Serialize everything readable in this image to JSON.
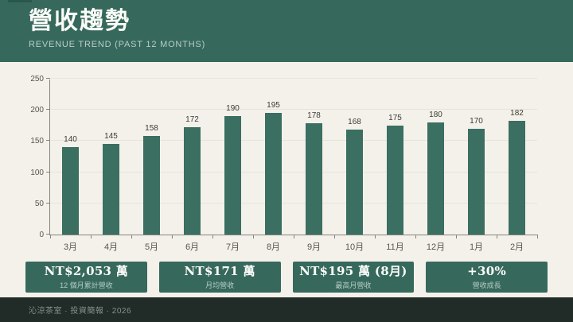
{
  "header": {
    "title": "營收趨勢",
    "subtitle": "REVENUE TREND (PAST 12 MONTHS)"
  },
  "chart_data": {
    "type": "bar",
    "categories": [
      "3月",
      "4月",
      "5月",
      "6月",
      "7月",
      "8月",
      "9月",
      "10月",
      "11月",
      "12月",
      "1月",
      "2月"
    ],
    "values": [
      140,
      145,
      158,
      172,
      190,
      195,
      178,
      168,
      175,
      180,
      170,
      182
    ],
    "title": "",
    "xlabel": "",
    "ylabel": "",
    "ylim": [
      0,
      250
    ],
    "yticks": [
      0,
      50,
      100,
      150,
      200,
      250
    ],
    "grid": true,
    "value_labels": true,
    "legend": false
  },
  "stats": [
    {
      "value": "NT$2,053 萬",
      "label": "12 個月累計營收"
    },
    {
      "value": "NT$171 萬",
      "label": "月均營收"
    },
    {
      "value": "NT$195 萬 (8月)",
      "label": "最高月營收"
    },
    {
      "value": "+30%",
      "label": "營收成長"
    }
  ],
  "footer": {
    "text": "沁涼茶室 · 投資簡報 · 2026"
  },
  "colors": {
    "header_bg": "#36695C",
    "body_bg": "#F4F1EA",
    "accent_tab": "#2B564A",
    "bar": "#3A6F61",
    "card_bg": "#36695C",
    "card_value_text": "#FDFDFA",
    "card_label_text": "#B7CCC3",
    "footer_bg": "#212B28",
    "footer_text": "#85928D",
    "title_text": "#FBFBF8",
    "subtitle_text": "#B9CDC5",
    "axis_line": "#85857F",
    "axis_text": "#55554F",
    "value_label_text": "#3B3B36",
    "gridline": "#E7E4DC"
  }
}
